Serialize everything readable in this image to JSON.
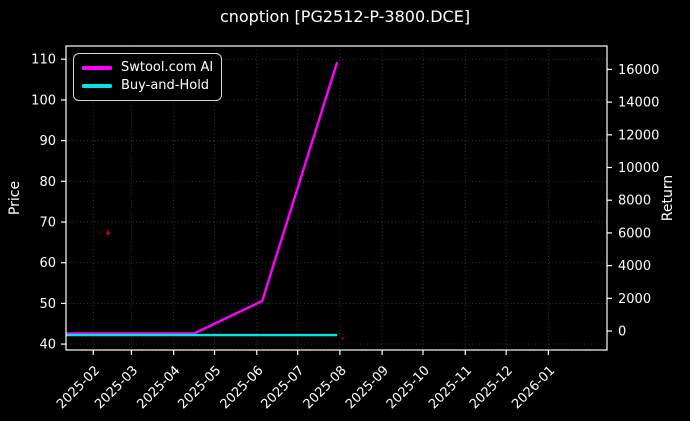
{
  "figure": {
    "background": "#000000",
    "text_color": "#ffffff"
  },
  "chart_data": {
    "type": "line",
    "title": "cnoption [PG2512-P-3800.DCE]",
    "xlabel": "",
    "ylabel_left": "Price",
    "ylabel_right": "Return",
    "axis_color": "#ffffff",
    "grid": {
      "on": true,
      "style": "dotted",
      "color": "#3c3c3c"
    },
    "legend": {
      "position": "upper-left",
      "entries": [
        {
          "label": "Swtool.com AI",
          "color": "#ff00ff"
        },
        {
          "label": "Buy-and-Hold",
          "color": "#00e5e6"
        }
      ]
    },
    "xlim": [
      "2025-01-12",
      "2026-02-13"
    ],
    "ylim_left": [
      38.55,
      113.25
    ],
    "ylim_right": [
      -1160,
      17430
    ],
    "x_ticks": [
      {
        "label": "2025-02",
        "date": "2025-02-01"
      },
      {
        "label": "2025-03",
        "date": "2025-03-01"
      },
      {
        "label": "2025-04",
        "date": "2025-04-01"
      },
      {
        "label": "2025-05",
        "date": "2025-05-01"
      },
      {
        "label": "2025-06",
        "date": "2025-06-01"
      },
      {
        "label": "2025-07",
        "date": "2025-07-01"
      },
      {
        "label": "2025-08",
        "date": "2025-08-01"
      },
      {
        "label": "2025-09",
        "date": "2025-09-01"
      },
      {
        "label": "2025-10",
        "date": "2025-10-01"
      },
      {
        "label": "2025-11",
        "date": "2025-11-01"
      },
      {
        "label": "2025-12",
        "date": "2025-12-01"
      },
      {
        "label": "2026-01",
        "date": "2026-01-01"
      }
    ],
    "y_ticks_left": [
      40,
      50,
      60,
      70,
      80,
      90,
      100,
      110
    ],
    "y_ticks_right": [
      0,
      2000,
      4000,
      6000,
      8000,
      10000,
      12000,
      14000,
      16000
    ],
    "series": [
      {
        "name": "Swtool.com AI",
        "color": "#ff00ff",
        "width": 2.4,
        "axis": "left",
        "points": [
          [
            "2025-01-12",
            42.6
          ],
          [
            "2025-04-16",
            42.6
          ],
          [
            "2025-06-05",
            50.6
          ],
          [
            "2025-07-30",
            109.3
          ]
        ]
      },
      {
        "name": "Buy-and-Hold",
        "color": "#00e5e6",
        "width": 2.4,
        "axis": "left",
        "points": [
          [
            "2025-01-12",
            42.2
          ],
          [
            "2025-07-30",
            42.2
          ]
        ]
      }
    ],
    "markers": [
      {
        "date": "2025-02-12",
        "value": 67.3,
        "color": "#bb0000",
        "size": 2
      },
      {
        "date": "2025-08-03",
        "value": 41.4,
        "color": "#7a0000",
        "size": 1.5
      }
    ]
  }
}
